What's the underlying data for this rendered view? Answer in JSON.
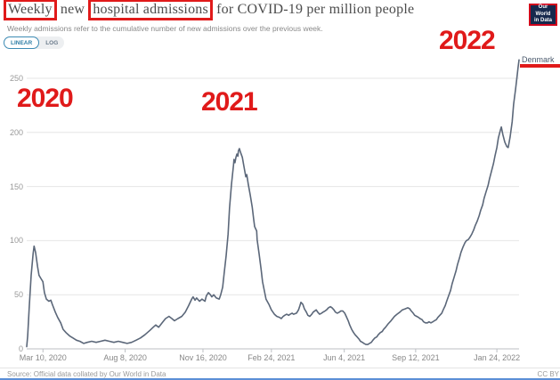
{
  "header": {
    "title_part_boxed_1": "Weekly",
    "title_part_2": " new ",
    "title_part_boxed_3": "hospital admissions",
    "title_part_4": " for COVID-19 per million people",
    "subtitle": "Weekly admissions refer to the cumulative number of new admissions over the previous week.",
    "logo_line1": "Our World",
    "logo_line2": "in Data"
  },
  "toolbar": {
    "linear_label": "LINEAR",
    "log_label": "LOG"
  },
  "annotations": {
    "year_2020": "2020",
    "year_2021": "2021",
    "year_2022": "2022"
  },
  "colors": {
    "annotation_red": "#e01a1a",
    "line": "#5b6779",
    "grid": "#e6e6e6",
    "axis": "#bcbfc3"
  },
  "series_label": "Denmark",
  "footer": {
    "source": "Source: Official data collated by Our World in Data",
    "license": "CC BY"
  },
  "chart_data": {
    "type": "line",
    "title": "Weekly new hospital admissions for COVID-19 per million people",
    "entity": "Denmark",
    "ylim": [
      0,
      250
    ],
    "y_ticks": [
      0,
      50,
      100,
      150,
      200,
      250
    ],
    "x_ticks": [
      {
        "label": "Mar 10, 2020",
        "pos": 0.033
      },
      {
        "label": "Aug 8, 2020",
        "pos": 0.2
      },
      {
        "label": "Nov 16, 2020",
        "pos": 0.358
      },
      {
        "label": "Feb 24, 2021",
        "pos": 0.497
      },
      {
        "label": "Jun 4, 2021",
        "pos": 0.645
      },
      {
        "label": "Sep 12, 2021",
        "pos": 0.79
      },
      {
        "label": "Jan 24, 2022",
        "pos": 0.955
      }
    ],
    "x_axis_note": "t = fraction of time axis from Mar 2020 to Feb 2022",
    "grid": true,
    "legend_position": "end-of-line",
    "points": [
      [
        0.0,
        2
      ],
      [
        0.002,
        12
      ],
      [
        0.005,
        38
      ],
      [
        0.009,
        68
      ],
      [
        0.013,
        88
      ],
      [
        0.015,
        95
      ],
      [
        0.018,
        89
      ],
      [
        0.022,
        76
      ],
      [
        0.025,
        68
      ],
      [
        0.029,
        65
      ],
      [
        0.033,
        62
      ],
      [
        0.036,
        52
      ],
      [
        0.04,
        46
      ],
      [
        0.045,
        44
      ],
      [
        0.049,
        45
      ],
      [
        0.052,
        41
      ],
      [
        0.058,
        34
      ],
      [
        0.063,
        29
      ],
      [
        0.069,
        24
      ],
      [
        0.074,
        18
      ],
      [
        0.08,
        15
      ],
      [
        0.087,
        12
      ],
      [
        0.094,
        10
      ],
      [
        0.101,
        8
      ],
      [
        0.108,
        7
      ],
      [
        0.116,
        5
      ],
      [
        0.123,
        6
      ],
      [
        0.132,
        7
      ],
      [
        0.141,
        6
      ],
      [
        0.15,
        7
      ],
      [
        0.159,
        8
      ],
      [
        0.168,
        7
      ],
      [
        0.177,
        6
      ],
      [
        0.186,
        7
      ],
      [
        0.195,
        6
      ],
      [
        0.204,
        5
      ],
      [
        0.213,
        6
      ],
      [
        0.222,
        8
      ],
      [
        0.231,
        10
      ],
      [
        0.24,
        13
      ],
      [
        0.25,
        17
      ],
      [
        0.257,
        20
      ],
      [
        0.262,
        22
      ],
      [
        0.268,
        20
      ],
      [
        0.275,
        24
      ],
      [
        0.282,
        28
      ],
      [
        0.289,
        30
      ],
      [
        0.295,
        28
      ],
      [
        0.3,
        26
      ],
      [
        0.307,
        28
      ],
      [
        0.315,
        30
      ],
      [
        0.322,
        34
      ],
      [
        0.329,
        40
      ],
      [
        0.335,
        46
      ],
      [
        0.338,
        48
      ],
      [
        0.342,
        45
      ],
      [
        0.345,
        47
      ],
      [
        0.351,
        44
      ],
      [
        0.356,
        46
      ],
      [
        0.362,
        44
      ],
      [
        0.365,
        49
      ],
      [
        0.369,
        52
      ],
      [
        0.373,
        50
      ],
      [
        0.376,
        48
      ],
      [
        0.38,
        50
      ],
      [
        0.385,
        47
      ],
      [
        0.391,
        46
      ],
      [
        0.394,
        50
      ],
      [
        0.398,
        57
      ],
      [
        0.401,
        70
      ],
      [
        0.405,
        86
      ],
      [
        0.409,
        106
      ],
      [
        0.412,
        130
      ],
      [
        0.416,
        152
      ],
      [
        0.42,
        170
      ],
      [
        0.421,
        175
      ],
      [
        0.423,
        172
      ],
      [
        0.425,
        177
      ],
      [
        0.427,
        180
      ],
      [
        0.429,
        178
      ],
      [
        0.43,
        183
      ],
      [
        0.432,
        185
      ],
      [
        0.434,
        182
      ],
      [
        0.438,
        177
      ],
      [
        0.441,
        169
      ],
      [
        0.443,
        164
      ],
      [
        0.445,
        159
      ],
      [
        0.447,
        161
      ],
      [
        0.45,
        152
      ],
      [
        0.454,
        142
      ],
      [
        0.458,
        131
      ],
      [
        0.461,
        120
      ],
      [
        0.463,
        113
      ],
      [
        0.465,
        111
      ],
      [
        0.467,
        109
      ],
      [
        0.468,
        101
      ],
      [
        0.472,
        88
      ],
      [
        0.476,
        74
      ],
      [
        0.479,
        62
      ],
      [
        0.483,
        53
      ],
      [
        0.486,
        46
      ],
      [
        0.492,
        41
      ],
      [
        0.497,
        36
      ],
      [
        0.503,
        32
      ],
      [
        0.508,
        30
      ],
      [
        0.514,
        29
      ],
      [
        0.517,
        28
      ],
      [
        0.521,
        30
      ],
      [
        0.524,
        31
      ],
      [
        0.528,
        32
      ],
      [
        0.532,
        31
      ],
      [
        0.535,
        32
      ],
      [
        0.539,
        33
      ],
      [
        0.542,
        32
      ],
      [
        0.548,
        33
      ],
      [
        0.552,
        36
      ],
      [
        0.555,
        40
      ],
      [
        0.557,
        43
      ],
      [
        0.561,
        41
      ],
      [
        0.564,
        37
      ],
      [
        0.568,
        34
      ],
      [
        0.571,
        31
      ],
      [
        0.575,
        30
      ],
      [
        0.579,
        32
      ],
      [
        0.582,
        34
      ],
      [
        0.588,
        36
      ],
      [
        0.591,
        34
      ],
      [
        0.595,
        32
      ],
      [
        0.599,
        33
      ],
      [
        0.602,
        34
      ],
      [
        0.606,
        35
      ],
      [
        0.609,
        36
      ],
      [
        0.613,
        38
      ],
      [
        0.617,
        39
      ],
      [
        0.62,
        38
      ],
      [
        0.624,
        36
      ],
      [
        0.627,
        34
      ],
      [
        0.631,
        33
      ],
      [
        0.635,
        34
      ],
      [
        0.638,
        35
      ],
      [
        0.642,
        35
      ],
      [
        0.646,
        33
      ],
      [
        0.649,
        30
      ],
      [
        0.653,
        26
      ],
      [
        0.656,
        22
      ],
      [
        0.66,
        18
      ],
      [
        0.664,
        15
      ],
      [
        0.667,
        13
      ],
      [
        0.671,
        11
      ],
      [
        0.675,
        9
      ],
      [
        0.678,
        7
      ],
      [
        0.682,
        6
      ],
      [
        0.685,
        5
      ],
      [
        0.689,
        4
      ],
      [
        0.693,
        4
      ],
      [
        0.696,
        5
      ],
      [
        0.7,
        6
      ],
      [
        0.703,
        8
      ],
      [
        0.707,
        10
      ],
      [
        0.711,
        11
      ],
      [
        0.714,
        13
      ],
      [
        0.718,
        15
      ],
      [
        0.722,
        16
      ],
      [
        0.725,
        18
      ],
      [
        0.729,
        20
      ],
      [
        0.734,
        23
      ],
      [
        0.74,
        26
      ],
      [
        0.747,
        30
      ],
      [
        0.752,
        32
      ],
      [
        0.758,
        34
      ],
      [
        0.763,
        36
      ],
      [
        0.769,
        37
      ],
      [
        0.774,
        38
      ],
      [
        0.778,
        37
      ],
      [
        0.781,
        35
      ],
      [
        0.785,
        33
      ],
      [
        0.788,
        31
      ],
      [
        0.792,
        30
      ],
      [
        0.796,
        29
      ],
      [
        0.799,
        28
      ],
      [
        0.803,
        27
      ],
      [
        0.806,
        25
      ],
      [
        0.81,
        24
      ],
      [
        0.814,
        24
      ],
      [
        0.817,
        25
      ],
      [
        0.821,
        24
      ],
      [
        0.825,
        25
      ],
      [
        0.828,
        26
      ],
      [
        0.832,
        27
      ],
      [
        0.835,
        29
      ],
      [
        0.839,
        31
      ],
      [
        0.843,
        33
      ],
      [
        0.846,
        36
      ],
      [
        0.85,
        40
      ],
      [
        0.853,
        44
      ],
      [
        0.857,
        49
      ],
      [
        0.861,
        54
      ],
      [
        0.864,
        60
      ],
      [
        0.868,
        66
      ],
      [
        0.872,
        72
      ],
      [
        0.875,
        78
      ],
      [
        0.879,
        84
      ],
      [
        0.882,
        89
      ],
      [
        0.886,
        94
      ],
      [
        0.89,
        98
      ],
      [
        0.893,
        100
      ],
      [
        0.897,
        101
      ],
      [
        0.9,
        103
      ],
      [
        0.904,
        106
      ],
      [
        0.908,
        110
      ],
      [
        0.911,
        114
      ],
      [
        0.915,
        118
      ],
      [
        0.919,
        123
      ],
      [
        0.922,
        128
      ],
      [
        0.926,
        133
      ],
      [
        0.929,
        139
      ],
      [
        0.933,
        145
      ],
      [
        0.937,
        151
      ],
      [
        0.94,
        157
      ],
      [
        0.944,
        164
      ],
      [
        0.948,
        171
      ],
      [
        0.951,
        178
      ],
      [
        0.955,
        186
      ],
      [
        0.958,
        195
      ],
      [
        0.962,
        202
      ],
      [
        0.964,
        205
      ],
      [
        0.967,
        198
      ],
      [
        0.971,
        191
      ],
      [
        0.975,
        187
      ],
      [
        0.978,
        186
      ],
      [
        0.982,
        196
      ],
      [
        0.986,
        210
      ],
      [
        0.989,
        226
      ],
      [
        0.993,
        240
      ],
      [
        0.996,
        252
      ],
      [
        0.998,
        260
      ],
      [
        1.0,
        267
      ]
    ]
  }
}
